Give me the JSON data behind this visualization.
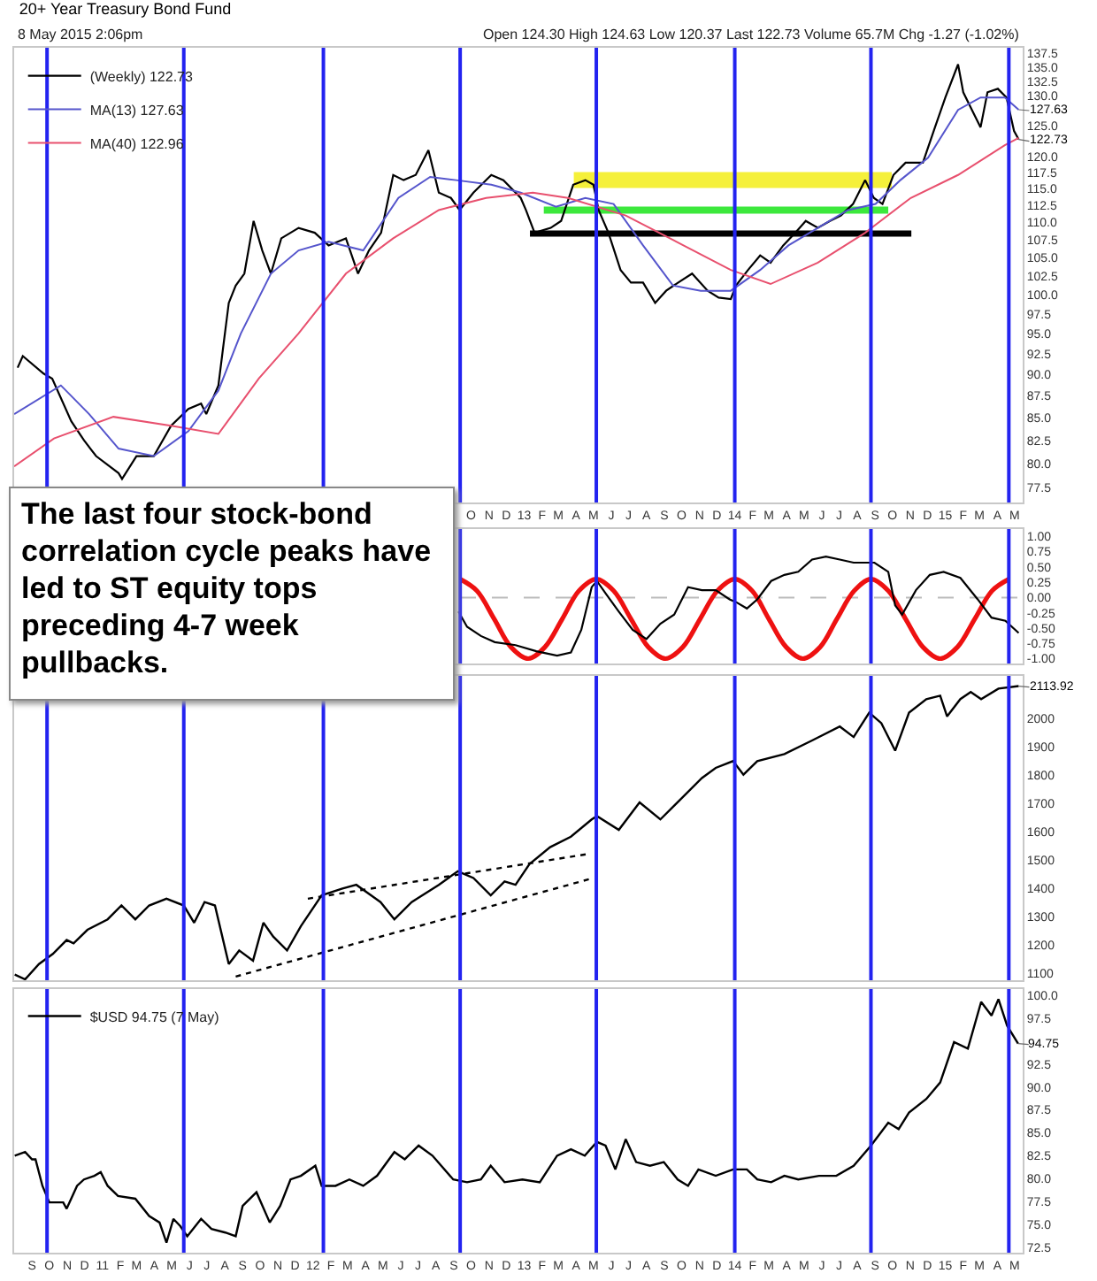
{
  "chart_data": [
    {
      "type": "line",
      "title": "20+ Year Treasury Bond Fund",
      "subtitle": "8 May 2015 2:06pm",
      "annotations": [
        "Open 124.30 High 124.63 Low 120.37 Last 122.73 Volume 65.7M Chg -1.27 (-1.02%)",
        {
          "text": "127.63",
          "x": "2015-05-08",
          "y": 127.63
        },
        {
          "text": "122.73",
          "x": "2015-05-08",
          "y": 122.73
        }
      ],
      "log": true,
      "grid": false,
      "legend": "top left",
      "xlim": [
        "2010-08-01",
        "2015-05-15"
      ],
      "ylim": [
        76,
        138.5
      ],
      "xticks": [
        {
          "value": "2012-10-01",
          "label": "O"
        },
        {
          "value": "2012-11-01",
          "label": "N"
        },
        {
          "value": "2012-12-01",
          "label": "D"
        },
        {
          "value": "2013-01-01",
          "label": "13"
        },
        {
          "value": "2013-02-01",
          "label": "F"
        },
        {
          "value": "2013-03-01",
          "label": "M"
        },
        {
          "value": "2013-04-01",
          "label": "A"
        },
        {
          "value": "2013-05-01",
          "label": "M"
        },
        {
          "value": "2013-06-01",
          "label": "J"
        },
        {
          "value": "2013-07-01",
          "label": "J"
        },
        {
          "value": "2013-08-01",
          "label": "A"
        },
        {
          "value": "2013-09-01",
          "label": "S"
        },
        {
          "value": "2013-10-01",
          "label": "O"
        },
        {
          "value": "2013-11-01",
          "label": "N"
        },
        {
          "value": "2013-12-01",
          "label": "D"
        },
        {
          "value": "2014-01-01",
          "label": "14"
        },
        {
          "value": "2014-02-01",
          "label": "F"
        },
        {
          "value": "2014-03-01",
          "label": "M"
        },
        {
          "value": "2014-04-01",
          "label": "A"
        },
        {
          "value": "2014-05-01",
          "label": "M"
        },
        {
          "value": "2014-06-01",
          "label": "J"
        },
        {
          "value": "2014-07-01",
          "label": "J"
        },
        {
          "value": "2014-08-01",
          "label": "A"
        },
        {
          "value": "2014-09-01",
          "label": "S"
        },
        {
          "value": "2014-10-01",
          "label": "O"
        },
        {
          "value": "2014-11-01",
          "label": "N"
        },
        {
          "value": "2014-12-01",
          "label": "D"
        },
        {
          "value": "2015-01-01",
          "label": "15"
        },
        {
          "value": "2015-02-01",
          "label": "F"
        },
        {
          "value": "2015-03-01",
          "label": "M"
        },
        {
          "value": "2015-04-01",
          "label": "A"
        },
        {
          "value": "2015-05-01",
          "label": "M"
        }
      ],
      "yticks": [
        77.5,
        {
          "value": 80,
          "label": "80.0"
        },
        82.5,
        {
          "value": 85,
          "label": "85.0"
        },
        87.5,
        {
          "value": 90,
          "label": "90.0"
        },
        92.5,
        {
          "value": 95,
          "label": "95.0"
        },
        97.5,
        {
          "value": 100,
          "label": "100.0"
        },
        102.5,
        {
          "value": 105,
          "label": "105.0"
        },
        107.5,
        {
          "value": 110,
          "label": "110.0"
        },
        112.5,
        {
          "value": 115,
          "label": "115.0"
        },
        117.5,
        {
          "value": 120,
          "label": "120.0"
        },
        {
          "value": 125,
          "label": "125.0"
        },
        {
          "value": 130,
          "label": "130.0"
        },
        132.5,
        {
          "value": 135,
          "label": "135.0"
        },
        137.5
      ],
      "ref_lines": [
        {
          "axis": "x",
          "value": "2010-09-27",
          "color": "#2323f0"
        },
        {
          "axis": "x",
          "value": "2011-05-22",
          "color": "#2323f0"
        },
        {
          "axis": "x",
          "value": "2012-01-19",
          "color": "#2323f0"
        },
        {
          "axis": "x",
          "value": "2012-09-12",
          "color": "#2323f0"
        },
        {
          "axis": "x",
          "value": "2013-05-06",
          "color": "#2323f0"
        },
        {
          "axis": "x",
          "value": "2014-01-01",
          "color": "#2323f0"
        },
        {
          "axis": "x",
          "value": "2014-08-25",
          "color": "#2323f0"
        },
        {
          "axis": "x",
          "value": "2015-04-21",
          "color": "#2323f0"
        }
      ],
      "series": [
        {
          "color": "#f5f03a",
          "x": [
            "2013-03-28",
            "2014-09-30"
          ],
          "values": [
            116.3,
            116.3
          ]
        },
        {
          "color": "#3ce83c",
          "x": [
            "2013-02-04",
            "2014-09-24"
          ],
          "values": [
            111.8,
            111.8
          ]
        },
        {
          "color": "#000000",
          "x": [
            "2013-01-11",
            "2014-11-03"
          ],
          "values": [
            108.4,
            108.4
          ]
        },
        {
          "name": "(Weekly) 122.73",
          "color": "#000000",
          "x": [
            "2010-08-07",
            "2010-08-16",
            "2010-09-21",
            "2010-10-06",
            "2010-11-08",
            "2010-11-30",
            "2010-12-21",
            "2011-01-29",
            "2011-02-04",
            "2011-03-01",
            "2011-03-31",
            "2011-04-30",
            "2011-05-30",
            "2011-06-21",
            "2011-06-30",
            "2011-07-21",
            "2011-07-30",
            "2011-08-08",
            "2011-08-20",
            "2011-09-04",
            "2011-09-20",
            "2011-10-05",
            "2011-10-20",
            "2011-11-07",
            "2011-12-07",
            "2012-01-04",
            "2012-01-28",
            "2012-02-27",
            "2012-03-19",
            "2012-04-07",
            "2012-04-28",
            "2012-05-19",
            "2012-06-06",
            "2012-06-27",
            "2012-07-19",
            "2012-08-06",
            "2012-08-27",
            "2012-09-11",
            "2012-10-05",
            "2012-11-05",
            "2012-11-26",
            "2012-12-26",
            "2013-01-04",
            "2013-01-19",
            "2013-02-16",
            "2013-03-06",
            "2013-03-27",
            "2013-04-17",
            "2013-05-01",
            "2013-05-10",
            "2013-05-27",
            "2013-06-17",
            "2013-07-05",
            "2013-07-26",
            "2013-08-16",
            "2013-09-04",
            "2013-09-25",
            "2013-10-19",
            "2013-11-15",
            "2013-12-04",
            "2013-12-25",
            "2014-01-03",
            "2014-01-24",
            "2014-02-14",
            "2014-03-04",
            "2014-03-26",
            "2014-04-16",
            "2014-05-04",
            "2014-05-25",
            "2014-06-15",
            "2014-07-04",
            "2014-07-25",
            "2014-08-15",
            "2014-08-30",
            "2014-09-14",
            "2014-10-03",
            "2014-10-24",
            "2014-11-23",
            "2014-12-14",
            "2015-01-01",
            "2015-01-23",
            "2015-02-01",
            "2015-02-16",
            "2015-03-03",
            "2015-03-15",
            "2015-04-02",
            "2015-04-17",
            "2015-04-30",
            "2015-05-08"
          ],
          "values": [
            90.8,
            92.2,
            90.1,
            89.5,
            84.6,
            82.5,
            80.8,
            79.0,
            78.4,
            80.8,
            80.8,
            84.1,
            86.0,
            86.6,
            85.4,
            88.7,
            93.7,
            98.9,
            101.2,
            102.8,
            110.2,
            106.0,
            102.8,
            107.7,
            109.2,
            108.5,
            106.7,
            107.7,
            102.8,
            106.0,
            108.5,
            117.1,
            116.3,
            117.1,
            121.0,
            114.4,
            113.6,
            111.8,
            114.4,
            117.1,
            116.3,
            113.6,
            111.8,
            108.5,
            109.2,
            110.2,
            115.6,
            116.3,
            115.6,
            111.8,
            108.5,
            103.3,
            101.6,
            101.6,
            98.9,
            100.5,
            101.6,
            102.8,
            100.5,
            99.6,
            99.4,
            101.2,
            103.3,
            105.3,
            104.3,
            106.7,
            108.5,
            110.2,
            109.2,
            110.2,
            111.0,
            112.7,
            116.3,
            113.6,
            112.7,
            117.1,
            119.0,
            119.0,
            124.7,
            129.7,
            135.5,
            130.6,
            127.6,
            124.7,
            130.6,
            131.2,
            129.7,
            124.1,
            122.73
          ]
        },
        {
          "name": "MA(13) 127.63",
          "color": "#5555cc",
          "x": [
            "2010-08-01",
            "2010-10-21",
            "2010-12-09",
            "2011-01-29",
            "2011-03-31",
            "2011-05-30",
            "2011-07-21",
            "2011-08-29",
            "2011-10-20",
            "2011-12-07",
            "2012-01-28",
            "2012-03-28",
            "2012-05-28",
            "2012-07-22",
            "2012-09-05",
            "2012-11-05",
            "2012-12-26",
            "2013-02-25",
            "2013-04-17",
            "2013-06-05",
            "2013-07-26",
            "2013-09-16",
            "2013-11-03",
            "2013-12-25",
            "2014-02-14",
            "2014-04-04",
            "2014-05-25",
            "2014-07-16",
            "2014-09-02",
            "2014-10-15",
            "2014-12-02",
            "2015-01-23",
            "2015-03-03",
            "2015-04-14",
            "2015-05-08"
          ],
          "values": [
            85.4,
            88.7,
            85.4,
            81.6,
            80.8,
            83.5,
            88.1,
            95.0,
            102.8,
            106.0,
            107.2,
            106.0,
            113.6,
            116.8,
            116.3,
            115.6,
            114.4,
            112.3,
            113.6,
            112.7,
            106.7,
            101.2,
            100.5,
            100.5,
            103.3,
            106.7,
            109.2,
            111.8,
            112.7,
            116.3,
            119.8,
            127.6,
            129.7,
            129.7,
            127.63
          ]
        },
        {
          "name": "MA(40) 122.96",
          "color": "#e8506e",
          "x": [
            "2010-08-01",
            "2010-10-09",
            "2011-01-20",
            "2011-04-30",
            "2011-07-21",
            "2011-09-29",
            "2011-12-07",
            "2012-02-27",
            "2012-05-19",
            "2012-08-06",
            "2012-10-27",
            "2013-01-16",
            "2013-03-18",
            "2013-06-26",
            "2013-10-04",
            "2013-12-25",
            "2014-03-04",
            "2014-05-25",
            "2014-08-15",
            "2014-11-02",
            "2015-01-23",
            "2015-04-14",
            "2015-05-08"
          ],
          "values": [
            79.7,
            82.7,
            85.1,
            84.1,
            83.2,
            89.5,
            95.0,
            102.8,
            107.7,
            111.8,
            113.6,
            114.4,
            113.6,
            111.0,
            106.7,
            103.3,
            101.4,
            104.3,
            108.5,
            113.6,
            117.1,
            121.8,
            122.96
          ]
        }
      ]
    },
    {
      "type": "line",
      "annotations": [
        "The last four stock-bond correlation cycle peaks have led to ST equity tops preceding 4-7 week pullbacks."
      ],
      "grid": false,
      "tick_labels": "y",
      "xlim": [
        "2010-08-01",
        "2015-05-15"
      ],
      "ylim": [
        -1.08,
        1.12
      ],
      "yticks": [
        {
          "value": 1,
          "label": "1.00"
        },
        0.75,
        {
          "value": 0.5,
          "label": "0.50"
        },
        0.25,
        {
          "value": 0,
          "label": "0.00"
        },
        -0.25,
        {
          "value": -0.5,
          "label": "-0.50"
        },
        -0.75,
        {
          "value": -1,
          "label": "-1.00"
        }
      ],
      "ref_lines": [
        {
          "axis": "y",
          "value": 0,
          "color": "#bbbbbb",
          "line_style": "dashed"
        },
        {
          "axis": "x",
          "value": "2012-09-12",
          "color": "#2323f0"
        },
        {
          "axis": "x",
          "value": "2013-05-06",
          "color": "#2323f0"
        },
        {
          "axis": "x",
          "value": "2014-01-01",
          "color": "#2323f0"
        },
        {
          "axis": "x",
          "value": "2014-08-25",
          "color": "#2323f0"
        },
        {
          "axis": "x",
          "value": "2015-04-21",
          "color": "#2323f0"
        }
      ],
      "series": [
        {
          "color": "#ee1111",
          "x": [
            "2012-09-12",
            "2012-10-11",
            "2012-11-10",
            "2012-12-09",
            "2013-01-08",
            "2013-02-06",
            "2013-03-08",
            "2013-04-06",
            "2013-05-06",
            "2013-06-05",
            "2013-07-05",
            "2013-08-04",
            "2013-09-03",
            "2013-10-03",
            "2013-11-02",
            "2013-12-02",
            "2014-01-01",
            "2014-01-31",
            "2014-03-01",
            "2014-03-31",
            "2014-04-29",
            "2014-05-29",
            "2014-06-27",
            "2014-07-27",
            "2014-08-25",
            "2014-09-24",
            "2014-10-24",
            "2014-11-23",
            "2014-12-23",
            "2015-01-22",
            "2015-02-21",
            "2015-03-23",
            "2015-04-21"
          ],
          "values": [
            0.3,
            0.11,
            -0.35,
            -0.81,
            -1.0,
            -0.81,
            -0.35,
            0.11,
            0.3,
            0.11,
            -0.35,
            -0.81,
            -1.0,
            -0.81,
            -0.35,
            0.11,
            0.3,
            0.11,
            -0.35,
            -0.81,
            -1.0,
            -0.81,
            -0.35,
            0.11,
            0.3,
            0.11,
            -0.35,
            -0.81,
            -1.0,
            -0.81,
            -0.35,
            0.11,
            0.3
          ]
        },
        {
          "color": "#000000",
          "x": [
            "2012-09-09",
            "2012-09-24",
            "2012-10-18",
            "2012-11-11",
            "2012-12-17",
            "2013-01-22",
            "2013-02-27",
            "2013-03-23",
            "2013-04-10",
            "2013-04-28",
            "2013-05-07",
            "2013-05-22",
            "2013-06-14",
            "2013-07-08",
            "2013-08-01",
            "2013-08-25",
            "2013-09-18",
            "2013-10-12",
            "2013-11-05",
            "2013-11-29",
            "2013-12-23",
            "2014-01-04",
            "2014-01-22",
            "2014-02-09",
            "2014-03-05",
            "2014-03-28",
            "2014-04-21",
            "2014-05-15",
            "2014-06-08",
            "2014-07-02",
            "2014-07-26",
            "2014-08-31",
            "2014-09-24",
            "2014-10-06",
            "2014-10-18",
            "2014-11-11",
            "2014-12-05",
            "2014-12-29",
            "2015-01-27",
            "2015-02-26",
            "2015-03-22",
            "2015-04-15",
            "2015-05-08"
          ],
          "values": [
            -0.23,
            -0.48,
            -0.63,
            -0.73,
            -0.78,
            -0.88,
            -0.95,
            -0.9,
            -0.53,
            0.17,
            0.27,
            0.07,
            -0.23,
            -0.53,
            -0.68,
            -0.43,
            -0.28,
            0.17,
            0.12,
            0.12,
            -0.03,
            -0.08,
            -0.18,
            -0.03,
            0.27,
            0.37,
            0.42,
            0.62,
            0.67,
            0.62,
            0.57,
            0.57,
            0.42,
            -0.13,
            -0.28,
            0.12,
            0.37,
            0.42,
            0.32,
            -0.03,
            -0.33,
            -0.38,
            -0.58
          ]
        }
      ]
    },
    {
      "type": "line",
      "annotations": [
        {
          "text": "2113.92",
          "x": "2015-05-08",
          "y": 2113.92
        }
      ],
      "grid": false,
      "tick_labels": "y",
      "xlim": [
        "2010-08-01",
        "2015-05-15"
      ],
      "ylim": [
        1075,
        2150
      ],
      "yticks": [
        1100,
        1200,
        1300,
        1400,
        1500,
        1600,
        1700,
        1800,
        1900,
        2000
      ],
      "ref_lines": [
        {
          "axis": "x",
          "value": "2010-09-27",
          "color": "#2323f0"
        },
        {
          "axis": "x",
          "value": "2011-05-22",
          "color": "#2323f0"
        },
        {
          "axis": "x",
          "value": "2012-01-19",
          "color": "#2323f0"
        },
        {
          "axis": "x",
          "value": "2012-09-12",
          "color": "#2323f0"
        },
        {
          "axis": "x",
          "value": "2013-05-06",
          "color": "#2323f0"
        },
        {
          "axis": "x",
          "value": "2014-01-01",
          "color": "#2323f0"
        },
        {
          "axis": "x",
          "value": "2014-08-25",
          "color": "#2323f0"
        },
        {
          "axis": "x",
          "value": "2015-04-21",
          "color": "#2323f0"
        }
      ],
      "series": [
        {
          "color": "#000000",
          "x": [
            "2010-08-02",
            "2010-08-20",
            "2010-09-13",
            "2010-10-07",
            "2010-10-31",
            "2010-11-12",
            "2010-12-06",
            "2011-01-10",
            "2011-02-03",
            "2011-02-27",
            "2011-03-23",
            "2011-04-22",
            "2011-05-22",
            "2011-06-09",
            "2011-06-27",
            "2011-07-15",
            "2011-08-08",
            "2011-08-26",
            "2011-09-19",
            "2011-10-07",
            "2011-10-24",
            "2011-11-17",
            "2011-12-11",
            "2012-01-16",
            "2012-02-21",
            "2012-03-16",
            "2012-04-27",
            "2012-05-21",
            "2012-06-20",
            "2012-08-06",
            "2012-09-08",
            "2012-10-05",
            "2012-11-04",
            "2012-11-28",
            "2012-12-17",
            "2013-01-10",
            "2013-02-15",
            "2013-03-23",
            "2013-04-28",
            "2013-05-07",
            "2013-06-14",
            "2013-07-20",
            "2013-08-25",
            "2013-09-30",
            "2013-11-05",
            "2013-11-29",
            "2013-12-29",
            "2014-01-16",
            "2014-02-09",
            "2014-03-28",
            "2014-05-15",
            "2014-07-02",
            "2014-07-26",
            "2014-08-22",
            "2014-09-12",
            "2014-10-06",
            "2014-10-30",
            "2014-11-29",
            "2014-12-23",
            "2015-01-04",
            "2015-01-27",
            "2015-02-14",
            "2015-03-04",
            "2015-04-03",
            "2015-05-08"
          ],
          "values": [
            1095,
            1078,
            1132,
            1168,
            1217,
            1205,
            1253,
            1290,
            1339,
            1290,
            1339,
            1363,
            1339,
            1278,
            1351,
            1339,
            1132,
            1180,
            1144,
            1278,
            1229,
            1180,
            1266,
            1375,
            1399,
            1412,
            1351,
            1290,
            1351,
            1412,
            1460,
            1436,
            1375,
            1424,
            1412,
            1485,
            1545,
            1582,
            1643,
            1655,
            1606,
            1703,
            1643,
            1716,
            1789,
            1825,
            1849,
            1801,
            1849,
            1874,
            1922,
            1971,
            1934,
            2020,
            1983,
            1886,
            2020,
            2068,
            2080,
            2007,
            2068,
            2093,
            2068,
            2105,
            2113.92
          ]
        },
        {
          "type": "line",
          "line_style": "dotted",
          "color": "#000000",
          "x": [
            "2011-12-23",
            "2013-04-22"
          ],
          "values": [
            1363,
            1521
          ]
        },
        {
          "type": "line",
          "line_style": "dotted",
          "color": "#000000",
          "x": [
            "2011-08-20",
            "2013-05-01"
          ],
          "values": [
            1088,
            1436
          ]
        }
      ]
    },
    {
      "type": "line",
      "annotations": [
        {
          "text": "94.75",
          "x": "2015-05-07",
          "y": 94.75
        }
      ],
      "grid": false,
      "legend": "top left",
      "xlim": [
        "2010-08-01",
        "2015-05-15"
      ],
      "ylim": [
        71.9,
        100.7
      ],
      "xticks": [
        {
          "value": "2010-09-01",
          "label": "S"
        },
        {
          "value": "2010-10-01",
          "label": "O"
        },
        {
          "value": "2010-11-01",
          "label": "N"
        },
        {
          "value": "2010-12-01",
          "label": "D"
        },
        {
          "value": "2011-01-01",
          "label": "11"
        },
        {
          "value": "2011-02-01",
          "label": "F"
        },
        {
          "value": "2011-03-01",
          "label": "M"
        },
        {
          "value": "2011-04-01",
          "label": "A"
        },
        {
          "value": "2011-05-01",
          "label": "M"
        },
        {
          "value": "2011-06-01",
          "label": "J"
        },
        {
          "value": "2011-07-01",
          "label": "J"
        },
        {
          "value": "2011-08-01",
          "label": "A"
        },
        {
          "value": "2011-09-01",
          "label": "S"
        },
        {
          "value": "2011-10-01",
          "label": "O"
        },
        {
          "value": "2011-11-01",
          "label": "N"
        },
        {
          "value": "2011-12-01",
          "label": "D"
        },
        {
          "value": "2012-01-01",
          "label": "12"
        },
        {
          "value": "2012-02-01",
          "label": "F"
        },
        {
          "value": "2012-03-01",
          "label": "M"
        },
        {
          "value": "2012-04-01",
          "label": "A"
        },
        {
          "value": "2012-05-01",
          "label": "M"
        },
        {
          "value": "2012-06-01",
          "label": "J"
        },
        {
          "value": "2012-07-01",
          "label": "J"
        },
        {
          "value": "2012-08-01",
          "label": "A"
        },
        {
          "value": "2012-09-01",
          "label": "S"
        },
        {
          "value": "2012-10-01",
          "label": "O"
        },
        {
          "value": "2012-11-01",
          "label": "N"
        },
        {
          "value": "2012-12-01",
          "label": "D"
        },
        {
          "value": "2013-01-01",
          "label": "13"
        },
        {
          "value": "2013-02-01",
          "label": "F"
        },
        {
          "value": "2013-03-01",
          "label": "M"
        },
        {
          "value": "2013-04-01",
          "label": "A"
        },
        {
          "value": "2013-05-01",
          "label": "M"
        },
        {
          "value": "2013-06-01",
          "label": "J"
        },
        {
          "value": "2013-07-01",
          "label": "J"
        },
        {
          "value": "2013-08-01",
          "label": "A"
        },
        {
          "value": "2013-09-01",
          "label": "S"
        },
        {
          "value": "2013-10-01",
          "label": "O"
        },
        {
          "value": "2013-11-01",
          "label": "N"
        },
        {
          "value": "2013-12-01",
          "label": "D"
        },
        {
          "value": "2014-01-01",
          "label": "14"
        },
        {
          "value": "2014-02-01",
          "label": "F"
        },
        {
          "value": "2014-03-01",
          "label": "M"
        },
        {
          "value": "2014-04-01",
          "label": "A"
        },
        {
          "value": "2014-05-01",
          "label": "M"
        },
        {
          "value": "2014-06-01",
          "label": "J"
        },
        {
          "value": "2014-07-01",
          "label": "J"
        },
        {
          "value": "2014-08-01",
          "label": "A"
        },
        {
          "value": "2014-09-01",
          "label": "S"
        },
        {
          "value": "2014-10-01",
          "label": "O"
        },
        {
          "value": "2014-11-01",
          "label": "N"
        },
        {
          "value": "2014-12-01",
          "label": "D"
        },
        {
          "value": "2015-01-01",
          "label": "15"
        },
        {
          "value": "2015-02-01",
          "label": "F"
        },
        {
          "value": "2015-03-01",
          "label": "M"
        },
        {
          "value": "2015-04-01",
          "label": "A"
        },
        {
          "value": "2015-05-01",
          "label": "M"
        }
      ],
      "yticks": [
        72.5,
        {
          "value": 75,
          "label": "75.0"
        },
        77.5,
        {
          "value": 80,
          "label": "80.0"
        },
        82.5,
        {
          "value": 85,
          "label": "85.0"
        },
        87.5,
        {
          "value": 90,
          "label": "90.0"
        },
        92.5,
        97.5,
        {
          "value": 100,
          "label": "100.0"
        }
      ],
      "ref_lines": [
        {
          "axis": "x",
          "value": "2010-09-27",
          "color": "#2323f0"
        },
        {
          "axis": "x",
          "value": "2011-05-22",
          "color": "#2323f0"
        },
        {
          "axis": "x",
          "value": "2012-01-19",
          "color": "#2323f0"
        },
        {
          "axis": "x",
          "value": "2012-09-12",
          "color": "#2323f0"
        },
        {
          "axis": "x",
          "value": "2013-05-06",
          "color": "#2323f0"
        },
        {
          "axis": "x",
          "value": "2014-01-01",
          "color": "#2323f0"
        },
        {
          "axis": "x",
          "value": "2014-08-25",
          "color": "#2323f0"
        },
        {
          "axis": "x",
          "value": "2015-04-21",
          "color": "#2323f0"
        }
      ],
      "series": [
        {
          "name": "$USD 94.75 (7 May)",
          "color": "#000000",
          "x": [
            "2010-08-02",
            "2010-08-20",
            "2010-09-01",
            "2010-09-07",
            "2010-09-19",
            "2010-10-01",
            "2010-10-25",
            "2010-10-31",
            "2010-11-18",
            "2010-11-30",
            "2010-12-18",
            "2010-12-29",
            "2011-01-10",
            "2011-01-28",
            "2011-02-27",
            "2011-03-23",
            "2011-04-10",
            "2011-04-22",
            "2011-05-04",
            "2011-05-16",
            "2011-05-28",
            "2011-06-21",
            "2011-07-09",
            "2011-08-02",
            "2011-08-20",
            "2011-09-01",
            "2011-09-25",
            "2011-10-18",
            "2011-11-05",
            "2011-11-23",
            "2011-12-11",
            "2012-01-05",
            "2012-01-16",
            "2012-02-09",
            "2012-03-04",
            "2012-03-28",
            "2012-04-21",
            "2012-05-21",
            "2012-06-08",
            "2012-07-02",
            "2012-07-26",
            "2012-08-31",
            "2012-09-24",
            "2012-10-18",
            "2012-11-04",
            "2012-11-28",
            "2012-12-29",
            "2013-01-28",
            "2013-02-27",
            "2013-03-23",
            "2013-04-16",
            "2013-05-07",
            "2013-05-22",
            "2013-06-08",
            "2013-06-26",
            "2013-07-14",
            "2013-08-07",
            "2013-08-31",
            "2013-09-24",
            "2013-10-12",
            "2013-10-30",
            "2013-11-29",
            "2013-12-29",
            "2014-01-22",
            "2014-02-09",
            "2014-03-05",
            "2014-03-28",
            "2014-04-21",
            "2014-05-27",
            "2014-06-26",
            "2014-07-26",
            "2014-08-25",
            "2014-09-24",
            "2014-10-12",
            "2014-10-30",
            "2014-11-29",
            "2014-12-23",
            "2015-01-16",
            "2015-02-09",
            "2015-03-04",
            "2015-03-22",
            "2015-04-03",
            "2015-04-18",
            "2015-05-07"
          ],
          "values": [
            82.5,
            82.9,
            82.1,
            82.1,
            79.2,
            77.4,
            77.4,
            76.7,
            79.2,
            79.9,
            80.3,
            80.7,
            79.2,
            78.1,
            77.8,
            75.9,
            75.2,
            73.0,
            75.6,
            74.8,
            73.7,
            75.6,
            74.5,
            74.1,
            73.7,
            77.0,
            78.5,
            75.2,
            77.0,
            79.9,
            80.3,
            81.4,
            79.2,
            79.2,
            79.9,
            79.2,
            80.3,
            82.9,
            82.1,
            83.6,
            82.5,
            79.9,
            79.6,
            79.9,
            81.4,
            79.6,
            79.9,
            79.6,
            82.5,
            83.2,
            82.5,
            84.0,
            83.6,
            81.0,
            84.3,
            81.8,
            81.4,
            81.8,
            79.9,
            79.2,
            81.0,
            80.3,
            81.0,
            81.0,
            79.9,
            79.6,
            80.3,
            79.9,
            80.3,
            80.3,
            81.4,
            83.6,
            86.1,
            85.4,
            87.2,
            88.7,
            90.5,
            94.9,
            94.2,
            99.3,
            97.8,
            99.6,
            96.7,
            94.75
          ]
        }
      ]
    }
  ]
}
